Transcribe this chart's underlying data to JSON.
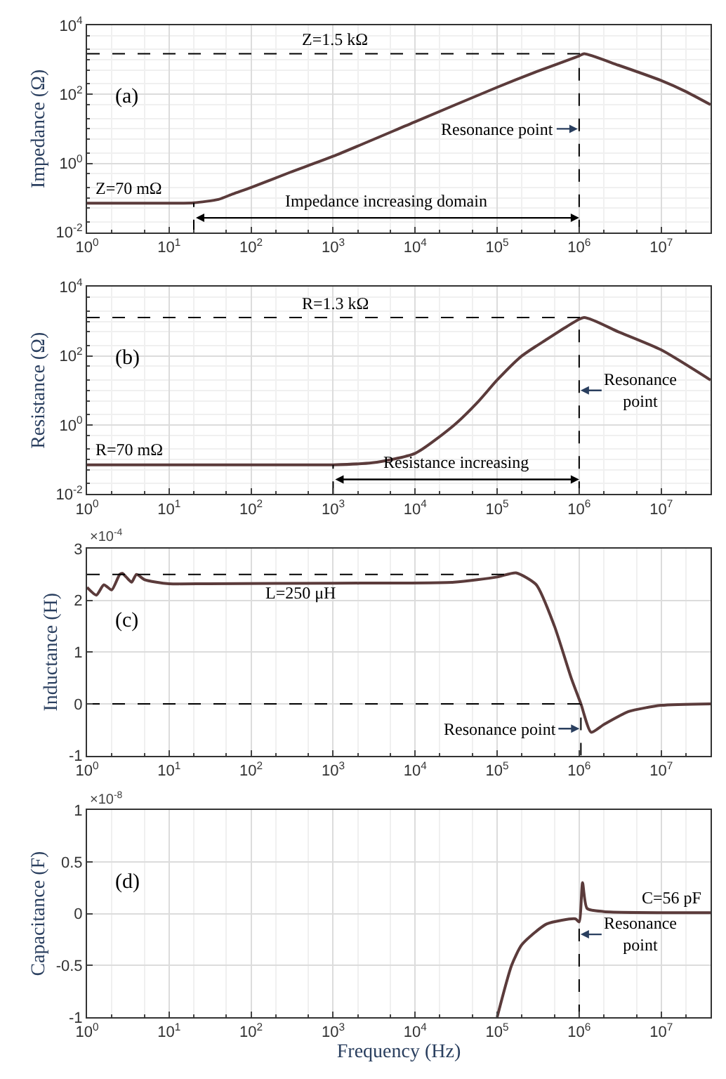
{
  "chart_data": [
    {
      "type": "line",
      "ylabel": "Impedance (Ω)",
      "log": "xy",
      "grid": true,
      "x": [
        1,
        10,
        20,
        40,
        60,
        100,
        300,
        1000,
        10000,
        100000,
        300000,
        1000000,
        1150000,
        3000000,
        10000000,
        20000000,
        40000000
      ],
      "series": [
        {
          "color": "#5b3b3b",
          "values": [
            0.07,
            0.07,
            0.072,
            0.09,
            0.13,
            0.2,
            0.55,
            1.6,
            16,
            160,
            450,
            1300,
            1500,
            700,
            250,
            120,
            50
          ]
        }
      ],
      "xlim": [
        1,
        40000000
      ],
      "xticks": [
        {
          "value": 1,
          "label": "10$^{0}$"
        },
        {
          "value": 10,
          "label": "10$^{1}$"
        },
        {
          "value": 100,
          "label": "10$^{2}$"
        },
        {
          "value": 1000,
          "label": "10$^{3}$"
        },
        {
          "value": 10000,
          "label": "10$^{4}$"
        },
        {
          "value": 100000,
          "label": "10$^{5}$"
        },
        {
          "value": 1000000,
          "label": "10$^{6}$"
        },
        {
          "value": 10000000,
          "label": "10$^{7}$"
        }
      ],
      "ylim": [
        0.01,
        10000
      ],
      "yticks": [
        {
          "value": 0.01,
          "label": "10$^{-2}$"
        },
        {
          "value": 1,
          "label": "10$^{0}$"
        },
        {
          "value": 100,
          "label": "10$^{2}$"
        },
        {
          "value": 10000,
          "label": "10$^{4}$"
        }
      ],
      "ref_lines": [
        {
          "axis": "y",
          "value": 1500,
          "label": "Z=1.5 kΩ",
          "line_style": "dashed",
          "color": "#000000"
        },
        {
          "axis": "x",
          "value": 1000000,
          "label": "Resonance point",
          "line_style": "dashed",
          "color": "#000000"
        },
        {
          "axis": "x",
          "value": 20,
          "line_style": "dashed",
          "color": "#000000"
        }
      ],
      "annotations": [
        "(a)",
        {
          "text": "Z=70 mΩ",
          "y": 0.07
        },
        "Impedance increasing domain"
      ]
    },
    {
      "type": "line",
      "ylabel": "Resistance (Ω)",
      "log": "xy",
      "grid": true,
      "x": [
        1,
        100,
        1000,
        3000,
        10000,
        30000,
        60000,
        100000,
        200000,
        400000,
        700000,
        1150000,
        3000000,
        10000000,
        40000000
      ],
      "series": [
        {
          "color": "#5b3b3b",
          "values": [
            0.07,
            0.07,
            0.07,
            0.08,
            0.15,
            1,
            5,
            20,
            100,
            300,
            700,
            1300,
            500,
            150,
            20
          ]
        }
      ],
      "xlim": [
        1,
        40000000
      ],
      "xticks": [
        {
          "value": 1,
          "label": "10$^{0}$"
        },
        {
          "value": 10,
          "label": "10$^{1}$"
        },
        {
          "value": 100,
          "label": "10$^{2}$"
        },
        {
          "value": 1000,
          "label": "10$^{3}$"
        },
        {
          "value": 10000,
          "label": "10$^{4}$"
        },
        {
          "value": 100000,
          "label": "10$^{5}$"
        },
        {
          "value": 1000000,
          "label": "10$^{6}$"
        },
        {
          "value": 10000000,
          "label": "10$^{7}$"
        }
      ],
      "ylim": [
        0.01,
        10000
      ],
      "yticks": [
        {
          "value": 0.01,
          "label": "10$^{-2}$"
        },
        {
          "value": 1,
          "label": "10$^{0}$"
        },
        {
          "value": 100,
          "label": "10$^{2}$"
        },
        {
          "value": 10000,
          "label": "10$^{4}$"
        }
      ],
      "ref_lines": [
        {
          "axis": "y",
          "value": 1300,
          "label": "R=1.3 kΩ",
          "line_style": "dashed",
          "color": "#000000"
        },
        {
          "axis": "x",
          "value": 1000000,
          "label": "Resonance\npoint",
          "line_style": "dashed",
          "color": "#000000"
        },
        {
          "axis": "x",
          "value": 1000,
          "line_style": "dashed",
          "color": "#000000"
        }
      ],
      "annotations": [
        "(b)",
        {
          "text": "R=70 mΩ",
          "y": 0.07
        },
        "Resistance increasing"
      ]
    },
    {
      "type": "line",
      "ylabel": "Inductance (H)",
      "log": "x",
      "grid": true,
      "x": [
        1,
        1.3,
        1.6,
        2,
        2.5,
        2.7,
        3,
        3.5,
        4,
        5,
        7,
        10,
        30,
        1000,
        30000,
        100000,
        170000,
        300000,
        500000,
        800000,
        1050000,
        1400000,
        2000000,
        4000000,
        10000000,
        40000000
      ],
      "series": [
        {
          "color": "#5b3b3b",
          "values": [
            2.25,
            2.1,
            2.3,
            2.2,
            2.5,
            2.52,
            2.45,
            2.35,
            2.5,
            2.4,
            2.35,
            2.32,
            2.32,
            2.33,
            2.35,
            2.45,
            2.53,
            2.3,
            1.5,
            0.5,
            0,
            -0.55,
            -0.4,
            -0.15,
            -0.03,
            0
          ]
        }
      ],
      "xlim": [
        1,
        40000000
      ],
      "xticks": [
        {
          "value": 1,
          "label": "10$^{0}$"
        },
        {
          "value": 10,
          "label": "10$^{1}$"
        },
        {
          "value": 100,
          "label": "10$^{2}$"
        },
        {
          "value": 1000,
          "label": "10$^{3}$"
        },
        {
          "value": 10000,
          "label": "10$^{4}$"
        },
        {
          "value": 100000,
          "label": "10$^{5}$"
        },
        {
          "value": 1000000,
          "label": "10$^{6}$"
        },
        {
          "value": 10000000,
          "label": "10$^{7}$"
        }
      ],
      "ylim": [
        -1,
        3
      ],
      "yticks": [
        -1,
        0,
        1,
        2,
        3
      ],
      "ref_lines": [
        {
          "axis": "y",
          "value": 2.5,
          "label": "L=250 μH",
          "line_style": "dashed",
          "color": "#000000"
        },
        {
          "axis": "y",
          "value": 0,
          "line_style": "dashed",
          "color": "#000000"
        },
        {
          "axis": "x",
          "value": 1050000,
          "label": "Resonance point",
          "line_style": "dashed",
          "color": "#000000"
        }
      ],
      "annotations": [
        "(c)",
        "×10$^{-4}$"
      ]
    },
    {
      "type": "line",
      "ylabel": "Capacitance (F)",
      "xlabel": "Frequency (Hz)",
      "log": "x",
      "grid": true,
      "x": [
        100000,
        150000,
        200000,
        400000,
        900000,
        1000000,
        1100000,
        1250000,
        2000000,
        40000000
      ],
      "series": [
        {
          "color": "#5b3b3b",
          "values": [
            -1,
            -0.5,
            -0.3,
            -0.1,
            -0.05,
            -0.08,
            0.3,
            0.05,
            0.02,
            0.01
          ]
        }
      ],
      "xlim": [
        1,
        40000000
      ],
      "xticks": [
        {
          "value": 1,
          "label": "10$^{0}$"
        },
        {
          "value": 10,
          "label": "10$^{1}$"
        },
        {
          "value": 100,
          "label": "10$^{2}$"
        },
        {
          "value": 1000,
          "label": "10$^{3}$"
        },
        {
          "value": 10000,
          "label": "10$^{4}$"
        },
        {
          "value": 100000,
          "label": "10$^{5}$"
        },
        {
          "value": 1000000,
          "label": "10$^{6}$"
        },
        {
          "value": 10000000,
          "label": "10$^{7}$"
        }
      ],
      "ylim": [
        -1,
        1
      ],
      "yticks": [
        -1,
        -0.5,
        0,
        0.5,
        1
      ],
      "ref_lines": [
        {
          "axis": "x",
          "value": 1000000,
          "label": "Resonance\npoint",
          "line_style": "dashed",
          "color": "#000000"
        }
      ],
      "annotations": [
        "(d)",
        "×10$^{-8}$",
        {
          "text": "C=56 pF",
          "y": 0.01
        }
      ]
    }
  ]
}
